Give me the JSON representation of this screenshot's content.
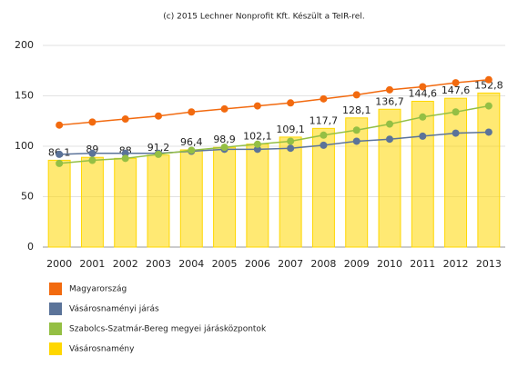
{
  "chart_data": {
    "type": "bar-line",
    "title": "(c) 2015 Lechner Nonprofit Kft. Készült a TeIR-rel.",
    "categories": [
      "2000",
      "2001",
      "2002",
      "2003",
      "2004",
      "2005",
      "2006",
      "2007",
      "2008",
      "2009",
      "2010",
      "2011",
      "2012",
      "2013"
    ],
    "ylim": [
      0,
      200
    ],
    "yticks": [
      0,
      50,
      100,
      150,
      200
    ],
    "grid": true,
    "series": [
      {
        "name": "Magyarország",
        "type": "line",
        "color": "#f26a0f",
        "values": [
          121,
          124,
          127,
          130,
          134,
          137,
          140,
          143,
          147,
          151,
          156,
          159,
          163,
          166
        ]
      },
      {
        "name": "Vásárosnaményi járás",
        "type": "line",
        "color": "#5b7399",
        "values": [
          92,
          93,
          93,
          93,
          95,
          97,
          97,
          98,
          101,
          105,
          107,
          110,
          113,
          114
        ]
      },
      {
        "name": "Szabolcs-Szatmár-Bereg megyei járásközpontok",
        "type": "line",
        "color": "#94bf44",
        "values": [
          83,
          86,
          88,
          92,
          96,
          99,
          102,
          105,
          111,
          116,
          122,
          129,
          134,
          140
        ]
      },
      {
        "name": "Vásárosnamény",
        "type": "bar",
        "color": "#ffd700",
        "values": [
          86.1,
          89,
          88,
          91.2,
          96.4,
          98.9,
          102.1,
          109.1,
          117.7,
          128.1,
          136.7,
          144.6,
          147.6,
          152.8
        ],
        "value_labels": [
          "86,1",
          "89",
          "88",
          "91,2",
          "96,4",
          "98,9",
          "102,1",
          "109,1",
          "117,7",
          "128,1",
          "136,7",
          "144,6",
          "147,6",
          "152,8"
        ]
      }
    ]
  }
}
